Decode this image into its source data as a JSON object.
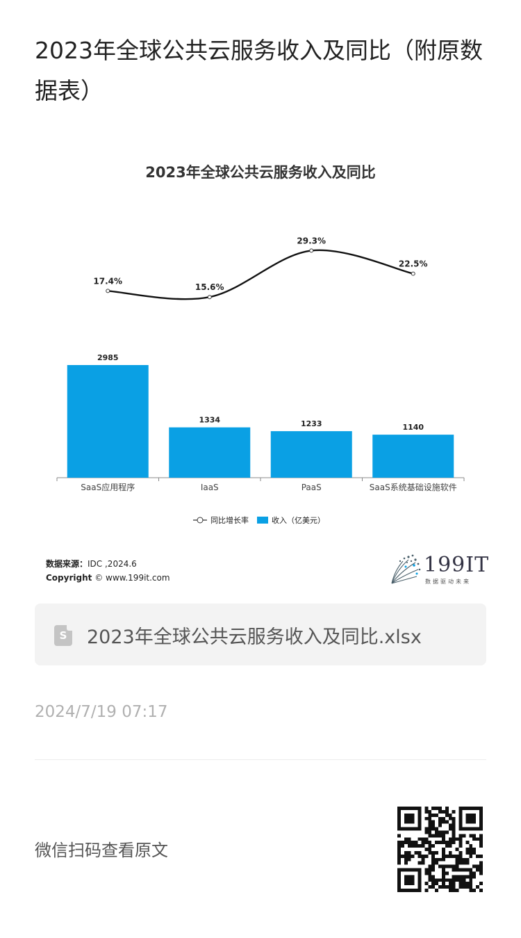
{
  "page": {
    "title": "2023年全球公共云服务收入及同比（附原数据表）"
  },
  "chart_data": {
    "type": "bar",
    "title": "2023年全球公共云服务收入及同比",
    "categories": [
      "SaaS应用程序",
      "IaaS",
      "PaaS",
      "SaaS系统基础设施软件"
    ],
    "series": [
      {
        "name": "收入（亿美元）",
        "type": "bar",
        "values": [
          2985,
          1334,
          1233,
          1140
        ],
        "labels": [
          "2985",
          "1334",
          "1233",
          "1140"
        ],
        "color": "#0aa0e4"
      },
      {
        "name": "同比增长率",
        "type": "line",
        "values": [
          17.4,
          15.6,
          29.3,
          22.5
        ],
        "labels": [
          "17.4%",
          "15.6%",
          "29.3%",
          "22.5%"
        ],
        "color": "#111111"
      }
    ],
    "legend": [
      "同比增长率",
      "收入（亿美元）"
    ],
    "legend_position": "bottom",
    "grid": false
  },
  "source": {
    "label": "数据来源：",
    "value": "IDC ,2024.6",
    "copyright_label": "Copyright",
    "copyright_value": "© www.199it.com"
  },
  "brand": {
    "name": "199IT",
    "tagline": "数据驱动未来",
    "icon": "dandelion-logo-icon"
  },
  "file": {
    "icon": "spreadsheet-file-icon",
    "icon_glyph": "S",
    "name": "2023年全球公共云服务收入及同比.xlsx"
  },
  "date": "2024/7/19 07:17",
  "qr": {
    "label": "微信扫码查看原文",
    "icon": "qr-code-icon"
  }
}
